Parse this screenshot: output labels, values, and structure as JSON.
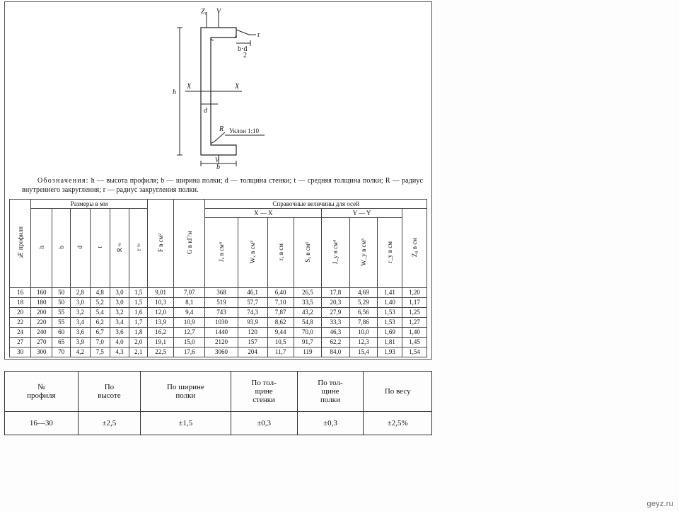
{
  "diagram": {
    "labels": {
      "Z0": "Z₀",
      "V_top": "V",
      "r": "r",
      "bd2": "b·d",
      "two": "2",
      "X_left": "X",
      "X_right": "X",
      "d_mid": "d",
      "h_left": "h",
      "R": "R",
      "slope": "Уклон 1:10",
      "V_bot": "V",
      "b_bot": "b"
    },
    "colors": {
      "stroke": "#222",
      "fill": "#fff"
    }
  },
  "legend": {
    "lead": "Обозначения:",
    "body": "h — высота профиля;  b — ширина полки;  d — толщина стенки;  t — средняя толщина полки;  R — радиус внутреннего закругления;  r — радиус закругления полки."
  },
  "main_table": {
    "top": {
      "sizes": "Размеры в мм",
      "ref": "Справочные величины для осей",
      "xx": "X — X",
      "yy": "Y — Y"
    },
    "cols": {
      "no": "№ профиля",
      "h": "h",
      "b": "b",
      "d": "d",
      "t": "t",
      "R": "R ≈",
      "r": "r ≈",
      "F": "F в см²",
      "G": "G в кГ/м",
      "Jx": "Jₓ в см⁴",
      "Wx": "Wₓ в см³",
      "rx": "rₓ в см",
      "Sx": "Sₓ в см³",
      "Jy": "J_y в см⁴",
      "Wy": "W_y в см³",
      "ry": "r_y в см",
      "Z0": "Z₀ в см"
    },
    "rows": [
      [
        "16",
        "160",
        "50",
        "2,8",
        "4,8",
        "3,0",
        "1,5",
        "9,01",
        "7,07",
        "368",
        "46,1",
        "6,40",
        "26,5",
        "17,8",
        "4,69",
        "1,41",
        "1,20"
      ],
      [
        "18",
        "180",
        "50",
        "3,0",
        "5,2",
        "3,0",
        "1,5",
        "10,3",
        "8,1",
        "519",
        "57,7",
        "7,10",
        "33,5",
        "20,3",
        "5,29",
        "1,40",
        "1,17"
      ],
      [
        "20",
        "200",
        "55",
        "3,2",
        "5,4",
        "3,2",
        "1,6",
        "12,0",
        "9,4",
        "743",
        "74,3",
        "7,87",
        "43,2",
        "27,9",
        "6,56",
        "1,53",
        "1,25"
      ],
      [
        "22",
        "220",
        "55",
        "3,4",
        "6,2",
        "3,4",
        "1,7",
        "13,9",
        "10,9",
        "1030",
        "93,9",
        "8,62",
        "54,8",
        "33,3",
        "7,86",
        "1,53",
        "1,27"
      ],
      [
        "24",
        "240",
        "60",
        "3,6",
        "6,7",
        "3,6",
        "1,8",
        "16,2",
        "12,7",
        "1440",
        "120",
        "9,44",
        "70,0",
        "46,3",
        "10,0",
        "1,69",
        "1,40"
      ],
      [
        "27",
        "270",
        "65",
        "3,9",
        "7,0",
        "4,0",
        "2,0",
        "19,1",
        "15,0",
        "2120",
        "157",
        "10,5",
        "91,7",
        "62,2",
        "12,3",
        "1,81",
        "1,45"
      ],
      [
        "30",
        "300",
        "70",
        "4,2",
        "7,5",
        "4,3",
        "2,1",
        "22,5",
        "17,6",
        "3060",
        "204",
        "11,7",
        "119",
        "84,0",
        "15,4",
        "1,93",
        "1,54"
      ]
    ]
  },
  "tolerance_table": {
    "headers": [
      "№\nпрофиля",
      "По\nвысоте",
      "По ширине\nполки",
      "По тол-\nщине\nстенки",
      "По тол-\nщине\n полки",
      "По весу"
    ],
    "row": [
      "16—30",
      "±2,5",
      "±1,5",
      "±0,3",
      "±0,3",
      "±2,5%"
    ]
  },
  "watermark": "geyz.ru",
  "colors": {
    "border": "#444",
    "text": "#111",
    "bg": "#fff"
  }
}
